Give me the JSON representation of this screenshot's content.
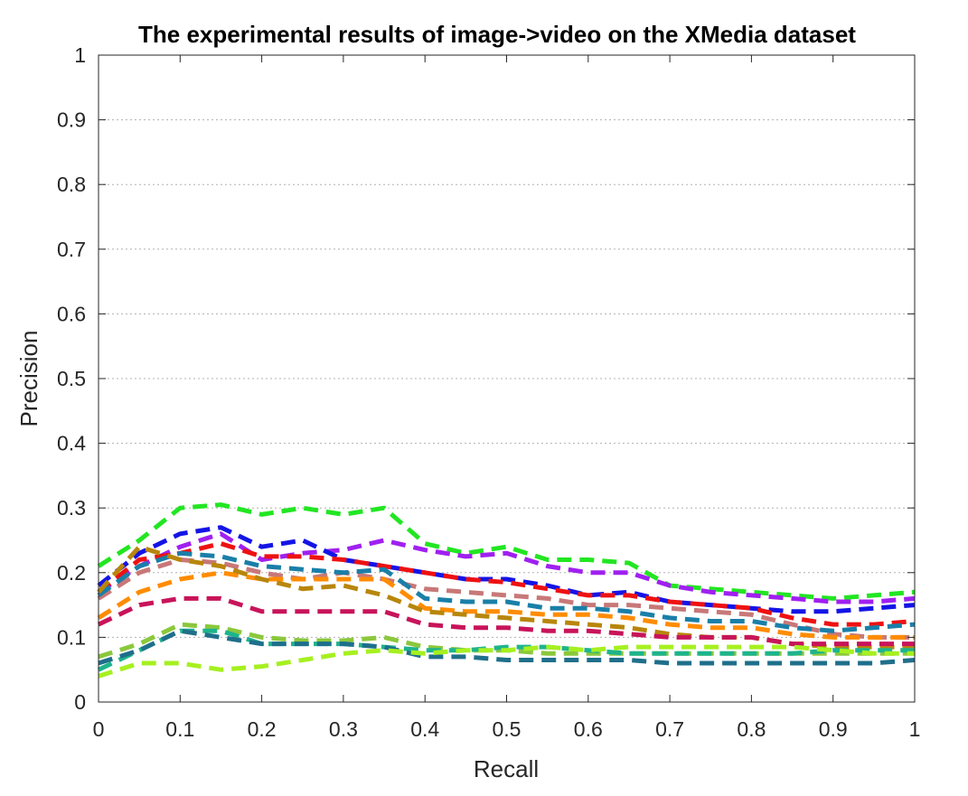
{
  "chart_data": {
    "type": "line",
    "title": "The experimental results of image->video on the XMedia dataset",
    "xlabel": "Recall",
    "ylabel": "Precision",
    "xlim": [
      0,
      1
    ],
    "ylim": [
      0,
      1
    ],
    "xticks": [
      "0",
      "0.1",
      "0.2",
      "0.3",
      "0.4",
      "0.5",
      "0.6",
      "0.7",
      "0.8",
      "0.9",
      "1"
    ],
    "yticks": [
      "0",
      "0.1",
      "0.2",
      "0.3",
      "0.4",
      "0.5",
      "0.6",
      "0.7",
      "0.8",
      "0.9",
      "1"
    ],
    "grid": "horizontal dotted",
    "legend": "none",
    "x": [
      0,
      0.05,
      0.1,
      0.15,
      0.2,
      0.25,
      0.3,
      0.35,
      0.4,
      0.45,
      0.5,
      0.55,
      0.6,
      0.65,
      0.7,
      0.75,
      0.8,
      0.85,
      0.9,
      0.95,
      1.0
    ],
    "series": [
      {
        "color": "#22e622",
        "values": [
          0.21,
          0.25,
          0.3,
          0.305,
          0.29,
          0.3,
          0.29,
          0.3,
          0.245,
          0.23,
          0.24,
          0.22,
          0.22,
          0.215,
          0.18,
          0.175,
          0.17,
          0.165,
          0.16,
          0.165,
          0.17
        ]
      },
      {
        "color": "#a020f0",
        "values": [
          0.17,
          0.21,
          0.24,
          0.26,
          0.22,
          0.23,
          0.235,
          0.25,
          0.235,
          0.225,
          0.23,
          0.21,
          0.2,
          0.2,
          0.18,
          0.17,
          0.165,
          0.16,
          0.155,
          0.155,
          0.16
        ]
      },
      {
        "color": "#1414e6",
        "values": [
          0.18,
          0.23,
          0.26,
          0.27,
          0.24,
          0.25,
          0.22,
          0.21,
          0.2,
          0.19,
          0.19,
          0.18,
          0.165,
          0.17,
          0.155,
          0.15,
          0.145,
          0.14,
          0.14,
          0.145,
          0.15
        ]
      },
      {
        "color": "#ee1111",
        "values": [
          0.17,
          0.22,
          0.23,
          0.245,
          0.225,
          0.225,
          0.22,
          0.21,
          0.2,
          0.19,
          0.185,
          0.175,
          0.165,
          0.165,
          0.155,
          0.15,
          0.145,
          0.13,
          0.12,
          0.12,
          0.125
        ]
      },
      {
        "color": "#c87878",
        "values": [
          0.16,
          0.2,
          0.22,
          0.215,
          0.2,
          0.19,
          0.2,
          0.19,
          0.175,
          0.17,
          0.165,
          0.16,
          0.15,
          0.15,
          0.145,
          0.14,
          0.135,
          0.12,
          0.105,
          0.1,
          0.1
        ]
      },
      {
        "color": "#1a7fa8",
        "values": [
          0.165,
          0.21,
          0.23,
          0.225,
          0.21,
          0.205,
          0.2,
          0.205,
          0.16,
          0.155,
          0.155,
          0.145,
          0.145,
          0.14,
          0.13,
          0.125,
          0.125,
          0.115,
          0.11,
          0.115,
          0.12
        ]
      },
      {
        "color": "#ff8c00",
        "values": [
          0.13,
          0.17,
          0.19,
          0.2,
          0.19,
          0.19,
          0.19,
          0.19,
          0.145,
          0.14,
          0.14,
          0.135,
          0.135,
          0.13,
          0.12,
          0.115,
          0.115,
          0.105,
          0.1,
          0.1,
          0.1
        ]
      },
      {
        "color": "#b8860b",
        "values": [
          0.17,
          0.24,
          0.22,
          0.21,
          0.19,
          0.175,
          0.18,
          0.165,
          0.14,
          0.135,
          0.13,
          0.125,
          0.12,
          0.115,
          0.105,
          0.1,
          0.1,
          0.09,
          0.085,
          0.085,
          0.085
        ]
      },
      {
        "color": "#c8145a",
        "values": [
          0.12,
          0.15,
          0.16,
          0.16,
          0.14,
          0.14,
          0.14,
          0.14,
          0.12,
          0.115,
          0.115,
          0.11,
          0.11,
          0.105,
          0.1,
          0.1,
          0.1,
          0.09,
          0.09,
          0.09,
          0.09
        ]
      },
      {
        "color": "#8bc83c",
        "values": [
          0.07,
          0.09,
          0.12,
          0.115,
          0.1,
          0.095,
          0.095,
          0.1,
          0.085,
          0.08,
          0.08,
          0.075,
          0.075,
          0.075,
          0.075,
          0.075,
          0.075,
          0.075,
          0.075,
          0.075,
          0.075
        ]
      },
      {
        "color": "#1eb48c",
        "values": [
          0.05,
          0.08,
          0.11,
          0.11,
          0.09,
          0.09,
          0.09,
          0.085,
          0.08,
          0.08,
          0.085,
          0.085,
          0.08,
          0.075,
          0.075,
          0.075,
          0.075,
          0.075,
          0.08,
          0.08,
          0.08
        ]
      },
      {
        "color": "#1f6f8b",
        "values": [
          0.06,
          0.08,
          0.11,
          0.1,
          0.09,
          0.09,
          0.09,
          0.085,
          0.07,
          0.07,
          0.065,
          0.065,
          0.065,
          0.065,
          0.06,
          0.06,
          0.06,
          0.06,
          0.06,
          0.06,
          0.065
        ]
      },
      {
        "color": "#a6f020",
        "values": [
          0.04,
          0.06,
          0.06,
          0.05,
          0.055,
          0.065,
          0.075,
          0.08,
          0.075,
          0.08,
          0.08,
          0.085,
          0.08,
          0.085,
          0.085,
          0.085,
          0.085,
          0.085,
          0.08,
          0.075,
          0.075
        ]
      }
    ]
  }
}
